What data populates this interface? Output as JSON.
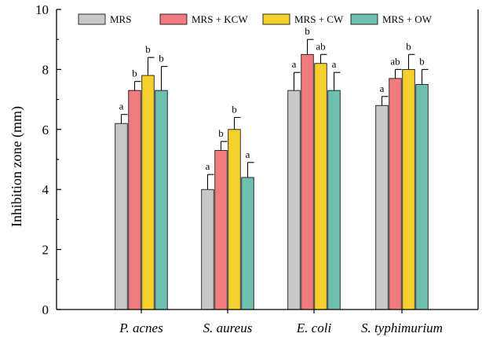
{
  "chart_data": {
    "type": "bar",
    "title": "",
    "xlabel": "",
    "ylabel": "Inhibition zone (mm)",
    "ylim": [
      0,
      10
    ],
    "yticks": [
      0,
      2,
      4,
      6,
      8,
      10
    ],
    "grid": false,
    "legend_position": "top",
    "categories": [
      "P. acnes",
      "S. aureus",
      "E. coli",
      "S. typhimurium"
    ],
    "series": [
      {
        "name": "MRS",
        "color": "#c7c8ca",
        "values": [
          6.2,
          4.0,
          7.3,
          6.8
        ],
        "errors": [
          0.3,
          0.5,
          0.6,
          0.3
        ],
        "labels": [
          "a",
          "a",
          "a",
          "a"
        ]
      },
      {
        "name": "MRS + KCW",
        "color": "#f07c80",
        "values": [
          7.3,
          5.3,
          8.5,
          7.7
        ],
        "errors": [
          0.3,
          0.3,
          0.5,
          0.3
        ],
        "labels": [
          "b",
          "b",
          "b",
          "ab"
        ]
      },
      {
        "name": "MRS + CW",
        "color": "#f6d02c",
        "values": [
          7.8,
          6.0,
          8.2,
          8.0
        ],
        "errors": [
          0.6,
          0.4,
          0.3,
          0.5
        ],
        "labels": [
          "b",
          "b",
          "ab",
          "b"
        ]
      },
      {
        "name": "MRS + OW",
        "color": "#6fbfae",
        "values": [
          7.3,
          4.4,
          7.3,
          7.5
        ],
        "errors": [
          0.8,
          0.5,
          0.6,
          0.5
        ],
        "labels": [
          "b",
          "a",
          "a",
          "b"
        ]
      }
    ]
  }
}
